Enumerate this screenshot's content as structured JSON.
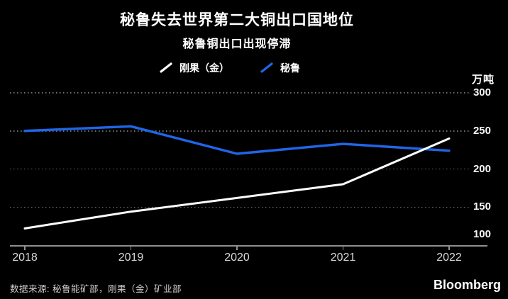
{
  "header": {
    "title": "秘鲁失去世界第二大铜出口国地位",
    "subtitle": "秘鲁铜出口出现停滞"
  },
  "legend": {
    "items": [
      {
        "label": "刚果（金）",
        "color": "#ffffff"
      },
      {
        "label": "秘鲁",
        "color": "#2065e6"
      }
    ]
  },
  "axes": {
    "unit_label": "万吨"
  },
  "chart_data": {
    "type": "line",
    "title": "秘鲁失去世界第二大铜出口国地位",
    "subtitle": "秘鲁铜出口出现停滞",
    "x": [
      2018,
      2019,
      2020,
      2021,
      2022
    ],
    "series": [
      {
        "name": "刚果（金）",
        "color": "#ffffff",
        "values": [
          122,
          144,
          162,
          180,
          240
        ]
      },
      {
        "name": "秘鲁",
        "color": "#2065e6",
        "values": [
          250,
          256,
          220,
          233,
          224
        ]
      }
    ],
    "ylabel": "万吨",
    "xlabel": "",
    "y_ticks": [
      300,
      250,
      200,
      150,
      100
    ],
    "ylim": [
      100,
      300
    ],
    "grid": "horizontal-dotted",
    "legend_position": "top-center"
  },
  "footer": {
    "source": "数据来源: 秘鲁能矿部，刚果（金）矿业部",
    "brand": "Bloomberg"
  },
  "colors": {
    "background": "#000000",
    "grid": "#707070",
    "axis": "#8f8f8f",
    "x_label": "#d8d8d8",
    "y_label": "#f5f5f5"
  }
}
